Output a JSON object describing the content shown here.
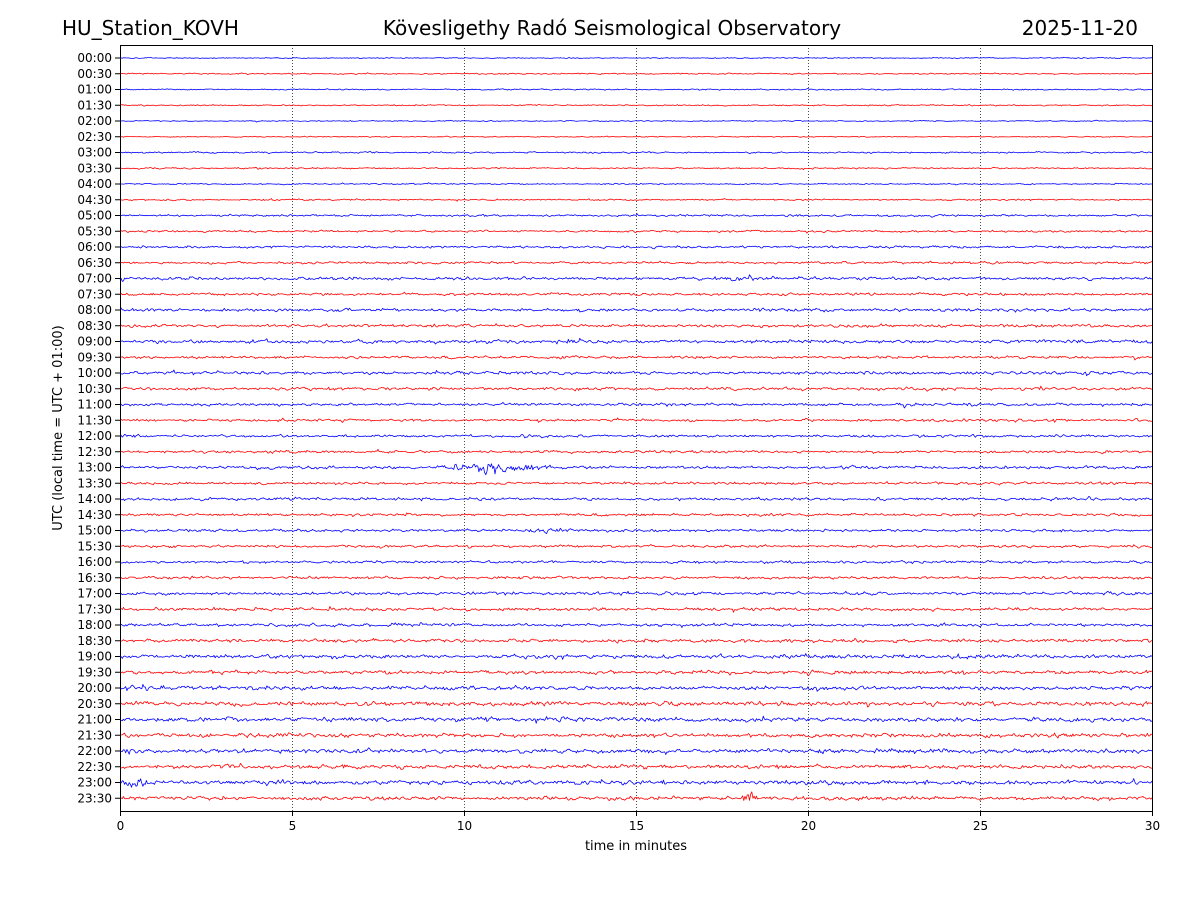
{
  "header": {
    "station": "HU_Station_KOVH",
    "observatory": "Kövesligethy Radó Seismological Observatory",
    "date": "2025-11-20"
  },
  "chart_data": {
    "type": "line",
    "title": "Kövesligethy Radó Seismological Observatory",
    "xlabel": "time in minutes",
    "ylabel": "UTC (local time = UTC + 01:00)",
    "xlim": [
      0,
      30
    ],
    "x_ticks": [
      0,
      5,
      10,
      15,
      20,
      25,
      30
    ],
    "x_tick_labels": [
      "0",
      "5",
      "10",
      "15",
      "20",
      "25",
      "30"
    ],
    "grid": "vertical dotted at x ticks",
    "colors": {
      "even_rows": "#0000ff",
      "odd_rows": "#ff0000"
    },
    "rows": [
      "00:00",
      "00:30",
      "01:00",
      "01:30",
      "02:00",
      "02:30",
      "03:00",
      "03:30",
      "04:00",
      "04:30",
      "05:00",
      "05:30",
      "06:00",
      "06:30",
      "07:00",
      "07:30",
      "08:00",
      "08:30",
      "09:00",
      "09:30",
      "10:00",
      "10:30",
      "11:00",
      "11:30",
      "12:00",
      "12:30",
      "13:00",
      "13:30",
      "14:00",
      "14:30",
      "15:00",
      "15:30",
      "16:00",
      "16:30",
      "17:00",
      "17:30",
      "18:00",
      "18:30",
      "19:00",
      "19:30",
      "20:00",
      "20:30",
      "21:00",
      "21:30",
      "22:00",
      "22:30",
      "23:00",
      "23:30"
    ],
    "noise_amplitude": [
      0.4,
      0.5,
      0.5,
      0.5,
      0.4,
      0.4,
      0.6,
      0.6,
      0.5,
      0.6,
      0.8,
      0.8,
      0.9,
      0.9,
      1.2,
      1.0,
      1.2,
      1.2,
      1.3,
      1.1,
      1.2,
      1.2,
      1.1,
      1.0,
      1.0,
      1.0,
      1.1,
      1.0,
      1.1,
      1.0,
      1.0,
      1.0,
      1.0,
      1.1,
      1.2,
      1.2,
      1.2,
      1.3,
      1.5,
      1.4,
      1.6,
      1.7,
      1.7,
      1.6,
      1.7,
      1.6,
      1.7,
      1.5
    ],
    "events": [
      {
        "row": "13:00",
        "minute": 10.8,
        "amplitude": 4.5,
        "duration": 2.5
      },
      {
        "row": "09:00",
        "minute": 13.3,
        "amplitude": 2.5,
        "duration": 0.6
      },
      {
        "row": "07:00",
        "minute": 18.3,
        "amplitude": 2.0,
        "duration": 1.2
      },
      {
        "row": "23:30",
        "minute": 18.3,
        "amplitude": 7.0,
        "duration": 0.35
      },
      {
        "row": "11:00",
        "minute": 22.8,
        "amplitude": 2.0,
        "duration": 0.5
      },
      {
        "row": "15:00",
        "minute": 12.6,
        "amplitude": 1.8,
        "duration": 1.2
      },
      {
        "row": "12:00",
        "minute": 0.4,
        "amplitude": 2.2,
        "duration": 0.6
      },
      {
        "row": "23:00",
        "minute": 0.4,
        "amplitude": 2.5,
        "duration": 0.8
      },
      {
        "row": "22:00",
        "minute": 0.1,
        "amplitude": 2.5,
        "duration": 0.4
      },
      {
        "row": "20:00",
        "minute": 0.6,
        "amplitude": 2.0,
        "duration": 1.0
      },
      {
        "row": "19:00",
        "minute": 24.5,
        "amplitude": 1.8,
        "duration": 0.8
      },
      {
        "row": "08:00",
        "minute": 18.5,
        "amplitude": 1.8,
        "duration": 0.5
      }
    ]
  }
}
